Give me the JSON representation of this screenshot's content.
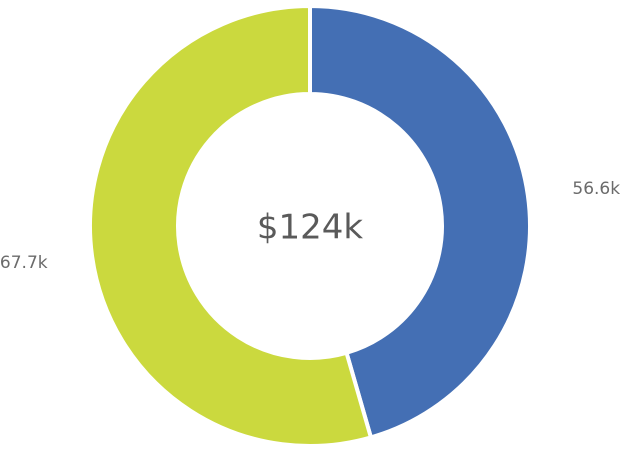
{
  "chart_data": {
    "type": "pie",
    "variant": "donut",
    "center_label": "$124k",
    "slices": [
      {
        "value": 56.6,
        "label": "56.6k",
        "color": "#446fb4"
      },
      {
        "value": 67.7,
        "label": "67.7k",
        "color": "#cbd93e"
      }
    ],
    "start_angle_deg": 0,
    "direction": "clockwise"
  }
}
